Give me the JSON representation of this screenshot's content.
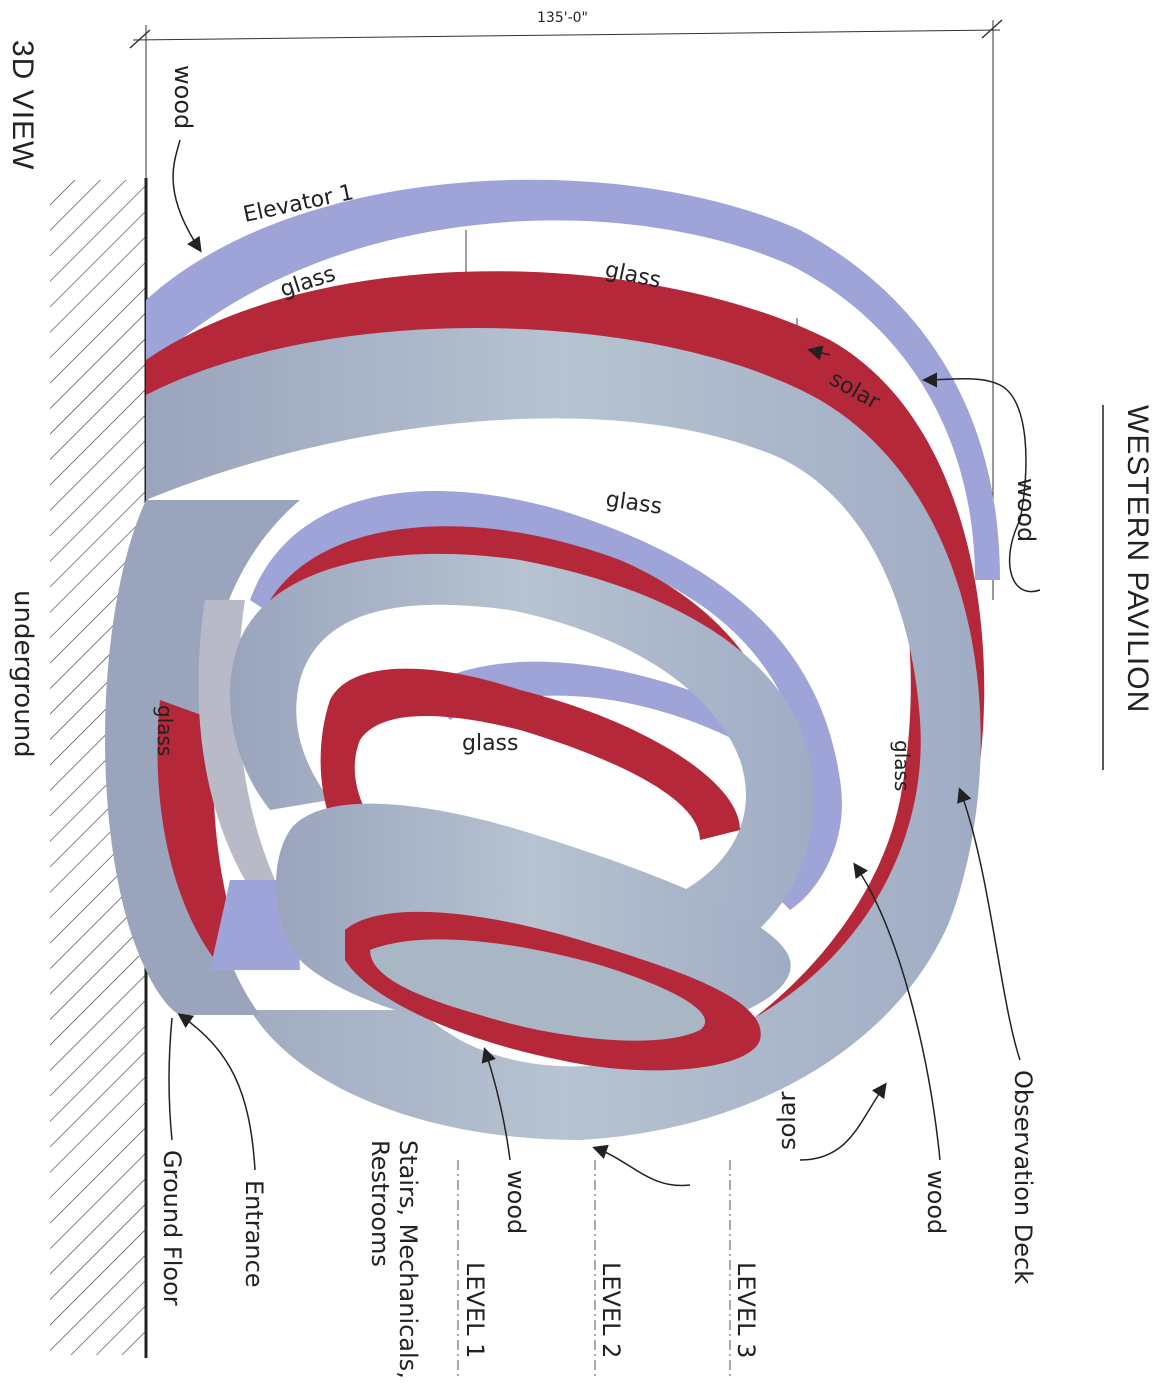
{
  "title": "WESTERN PAVILION",
  "view_label": "3D VIEW",
  "dimension": "135'-0\"",
  "colors": {
    "glass_band": "#9ea3d8",
    "wood_red": "#b4283a",
    "solar_grey": "#a9b6c4",
    "hatch": "#333333"
  },
  "materials": {
    "elevator": "Elevator 1",
    "glass": "glass",
    "solar": "solar",
    "wood": "wood",
    "underground": "underground"
  },
  "callouts": {
    "observation_deck": "Observation Deck",
    "wood": "wood",
    "solar": "solar",
    "stairs": "Stairs, Mechanicals,",
    "restrooms": "Restrooms",
    "entrance": "Entrance",
    "ground_floor": "Ground Floor"
  },
  "levels": {
    "level1": "LEVEL 1",
    "level2": "LEVEL 2",
    "level3": "LEVEL 3"
  }
}
